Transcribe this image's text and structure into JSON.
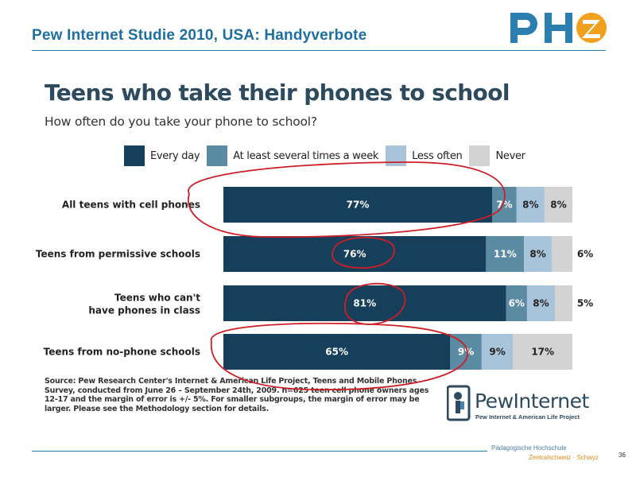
{
  "slide": {
    "title": "Pew Internet  Studie 2010, USA: Handyverbote",
    "page_number": "36",
    "school_line1": "Pädagogische Hochschule",
    "school_line2": "Zentralschweiz · Schwyz"
  },
  "source_note": "Source: Pew Research Center's Internet & American Life Project, Teens and Mobile Phones Survey, conducted from June 26 – September 24th, 2009. n=625 teen cell phone owners ages 12-17 and the margin of error is +/- 5%. For smaller subgroups, the margin of error may be larger. Please see the Methodology section for details.",
  "pew_logo": {
    "name": "PewInternet",
    "tagline": "Pew Internet & American Life Project"
  },
  "colors": {
    "title": "#1d6fa0",
    "every_day": "#163f5c",
    "several_times": "#5b8aa3",
    "less_often": "#a8c4da",
    "never": "#d3d3d3",
    "annotation": "#cc1f26"
  },
  "chart_data": {
    "type": "bar",
    "orientation": "horizontal",
    "stacked": true,
    "percent": true,
    "title": "Teens who take their phones to school",
    "subtitle": "How often do you take your phone to school?",
    "categories": [
      "All teens with cell phones",
      "Teens from permissive schools",
      "Teens who can't have phones in class",
      "Teens from no-phone schools"
    ],
    "series": [
      {
        "name": "Every day",
        "values": [
          77,
          76,
          81,
          65
        ],
        "labels": [
          "77%",
          "76%",
          "81%",
          "65%"
        ]
      },
      {
        "name": "At least several times a week",
        "values": [
          7,
          11,
          6,
          9
        ],
        "labels": [
          "7%",
          "11%",
          "6%",
          "9%"
        ]
      },
      {
        "name": "Less often",
        "values": [
          8,
          8,
          8,
          9
        ],
        "labels": [
          "8%",
          "8%",
          "8%",
          "9%"
        ]
      },
      {
        "name": "Never",
        "values": [
          8,
          6,
          5,
          17
        ],
        "labels": [
          "8%",
          "6%",
          "5%",
          "17%"
        ]
      }
    ],
    "legend": "top",
    "grid": false
  }
}
